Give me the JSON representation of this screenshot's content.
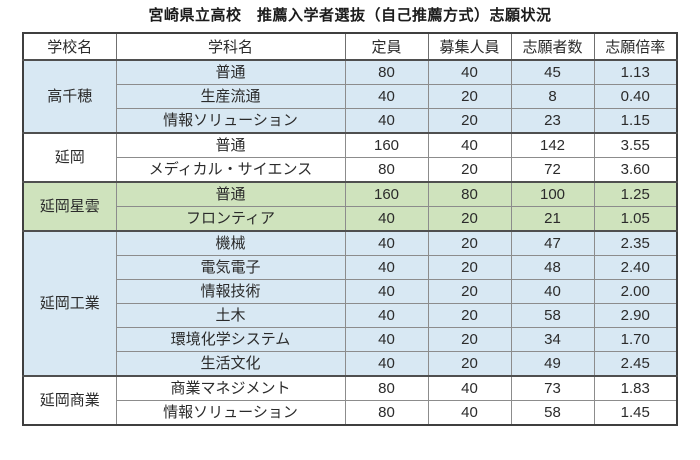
{
  "chart_data": {
    "type": "table",
    "title": "宮崎県立高校　推薦入学者選抜（自己推薦方式）志願状況",
    "columns": [
      "学校名",
      "学科名",
      "定員",
      "募集人員",
      "志願者数",
      "志願倍率"
    ],
    "row_colors": {
      "blue": "#d8e8f3",
      "green": "#cfe3bd",
      "white": "#ffffff"
    },
    "groups": [
      {
        "school": "高千穂",
        "color": "blue",
        "rows": [
          {
            "dept": "普通",
            "capacity": 80,
            "recruit": 40,
            "applicants": 45,
            "ratio": "1.13"
          },
          {
            "dept": "生産流通",
            "capacity": 40,
            "recruit": 20,
            "applicants": 8,
            "ratio": "0.40"
          },
          {
            "dept": "情報ソリューション",
            "capacity": 40,
            "recruit": 20,
            "applicants": 23,
            "ratio": "1.15"
          }
        ]
      },
      {
        "school": "延岡",
        "color": "white",
        "rows": [
          {
            "dept": "普通",
            "capacity": 160,
            "recruit": 40,
            "applicants": 142,
            "ratio": "3.55"
          },
          {
            "dept": "メディカル・サイエンス",
            "capacity": 80,
            "recruit": 20,
            "applicants": 72,
            "ratio": "3.60"
          }
        ]
      },
      {
        "school": "延岡星雲",
        "color": "green",
        "rows": [
          {
            "dept": "普通",
            "capacity": 160,
            "recruit": 80,
            "applicants": 100,
            "ratio": "1.25"
          },
          {
            "dept": "フロンティア",
            "capacity": 40,
            "recruit": 20,
            "applicants": 21,
            "ratio": "1.05"
          }
        ]
      },
      {
        "school": "延岡工業",
        "color": "blue",
        "rows": [
          {
            "dept": "機械",
            "capacity": 40,
            "recruit": 20,
            "applicants": 47,
            "ratio": "2.35"
          },
          {
            "dept": "電気電子",
            "capacity": 40,
            "recruit": 20,
            "applicants": 48,
            "ratio": "2.40"
          },
          {
            "dept": "情報技術",
            "capacity": 40,
            "recruit": 20,
            "applicants": 40,
            "ratio": "2.00"
          },
          {
            "dept": "土木",
            "capacity": 40,
            "recruit": 20,
            "applicants": 58,
            "ratio": "2.90"
          },
          {
            "dept": "環境化学システム",
            "capacity": 40,
            "recruit": 20,
            "applicants": 34,
            "ratio": "1.70"
          },
          {
            "dept": "生活文化",
            "capacity": 40,
            "recruit": 20,
            "applicants": 49,
            "ratio": "2.45"
          }
        ]
      },
      {
        "school": "延岡商業",
        "color": "white",
        "rows": [
          {
            "dept": "商業マネジメント",
            "capacity": 80,
            "recruit": 40,
            "applicants": 73,
            "ratio": "1.83"
          },
          {
            "dept": "情報ソリューション",
            "capacity": 80,
            "recruit": 40,
            "applicants": 58,
            "ratio": "1.45"
          }
        ]
      }
    ]
  }
}
